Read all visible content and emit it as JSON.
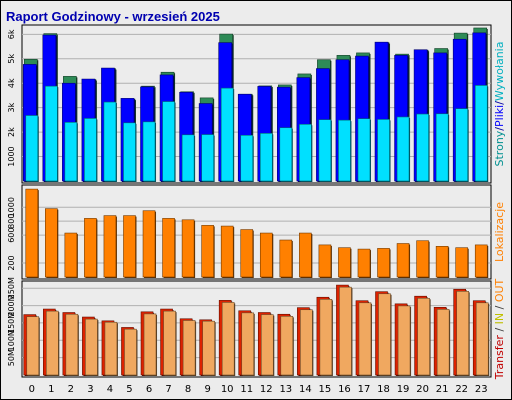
{
  "title": "Raport Godzinowy -  wrzesień 2025",
  "chart_data": [
    {
      "type": "bar",
      "panel": "top",
      "categories": [
        "0",
        "1",
        "2",
        "3",
        "4",
        "5",
        "6",
        "7",
        "8",
        "9",
        "10",
        "11",
        "12",
        "13",
        "14",
        "15",
        "16",
        "17",
        "18",
        "19",
        "20",
        "21",
        "22",
        "23"
      ],
      "ylim": [
        0,
        6300
      ],
      "yticks": [
        "1000",
        "2k",
        "3k",
        "4k",
        "5k",
        "6k"
      ],
      "grid": "horizontal",
      "ylabel_parts": [
        {
          "text": "Strony",
          "color": "#009090"
        },
        {
          "text": "/",
          "color": "#0000a0"
        },
        {
          "text": "Pliki",
          "color": "#0000ff"
        },
        {
          "text": "/",
          "color": "#0000a0"
        },
        {
          "text": "Wywołania",
          "color": "#00b0c0"
        }
      ],
      "series": [
        {
          "name": "Wywołania",
          "color": "#2e8b57",
          "values": [
            4980,
            6030,
            4280,
            4150,
            4600,
            3350,
            3880,
            4450,
            3650,
            3400,
            6010,
            3550,
            3890,
            3930,
            4380,
            4960,
            5140,
            5240,
            5660,
            5190,
            5350,
            5420,
            6050,
            6260
          ]
        },
        {
          "name": "Pliki",
          "color": "#0000ff",
          "values": [
            4770,
            5970,
            4000,
            4170,
            4620,
            3380,
            3850,
            4340,
            3630,
            3170,
            5660,
            3550,
            3870,
            3840,
            4230,
            4600,
            4960,
            5110,
            5680,
            5140,
            5370,
            5240,
            5800,
            6060
          ]
        },
        {
          "name": "Strony",
          "color": "#00e0ff",
          "values": [
            2680,
            3880,
            2400,
            2560,
            3230,
            2380,
            2420,
            3250,
            1890,
            1900,
            3800,
            1870,
            1950,
            2180,
            2320,
            2510,
            2490,
            2550,
            2520,
            2620,
            2740,
            2750,
            2960,
            3910
          ]
        }
      ]
    },
    {
      "type": "bar",
      "panel": "middle",
      "categories": [
        "0",
        "1",
        "2",
        "3",
        "4",
        "5",
        "6",
        "7",
        "8",
        "9",
        "10",
        "11",
        "12",
        "13",
        "14",
        "15",
        "16",
        "17",
        "18",
        "19",
        "20",
        "21",
        "22",
        "23"
      ],
      "ylim": [
        0,
        1290
      ],
      "yticks": [
        "200",
        "600",
        "800",
        "1000"
      ],
      "grid": "horizontal",
      "ylabel_parts": [
        {
          "text": "Lokalizacje",
          "color": "#ff8000"
        }
      ],
      "series": [
        {
          "name": "Lokalizacje",
          "color": "#ff8000",
          "values": [
            1260,
            980,
            630,
            840,
            880,
            880,
            950,
            840,
            820,
            740,
            730,
            680,
            630,
            530,
            630,
            460,
            420,
            400,
            410,
            480,
            520,
            440,
            420,
            460
          ]
        }
      ]
    },
    {
      "type": "bar",
      "panel": "bottom",
      "categories": [
        "0",
        "1",
        "2",
        "3",
        "4",
        "5",
        "6",
        "7",
        "8",
        "9",
        "10",
        "11",
        "12",
        "13",
        "14",
        "15",
        "16",
        "17",
        "18",
        "19",
        "20",
        "21",
        "22",
        "23"
      ],
      "ylim": [
        0,
        265
      ],
      "yticks": [
        "50M",
        "100M",
        "150M",
        "200M",
        "250M"
      ],
      "grid": "horizontal",
      "ylabel_parts": [
        {
          "text": "Transfer",
          "color": "#c00000"
        },
        {
          "text": " / ",
          "color": "#404040"
        },
        {
          "text": "IN",
          "color": "#c0c000"
        },
        {
          "text": " / ",
          "color": "#404040"
        },
        {
          "text": "OUT",
          "color": "#ff8000"
        }
      ],
      "series": [
        {
          "name": "Transfer",
          "color": "#dd2200",
          "values": [
            174,
            190,
            180,
            167,
            156,
            137,
            182,
            190,
            162,
            159,
            215,
            185,
            180,
            175,
            194,
            224,
            259,
            214,
            240,
            205,
            227,
            195,
            247,
            214
          ]
        },
        {
          "name": "OUT",
          "color": "#f0a860",
          "values": [
            168,
            184,
            175,
            161,
            152,
            132,
            176,
            184,
            157,
            155,
            209,
            179,
            174,
            169,
            188,
            218,
            253,
            208,
            234,
            199,
            221,
            189,
            241,
            208
          ]
        }
      ]
    }
  ]
}
